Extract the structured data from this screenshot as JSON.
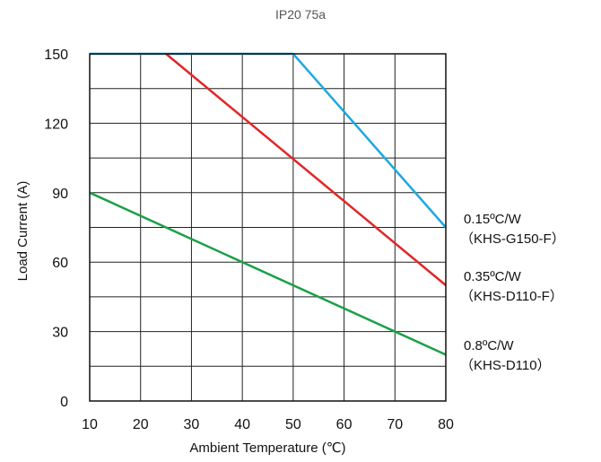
{
  "chart_data": {
    "type": "line",
    "title": "IP20 75a",
    "xlabel": "Ambient Temperature (℃)",
    "ylabel": "Load Current (A)",
    "xlim": [
      10,
      80
    ],
    "ylim": [
      0,
      150
    ],
    "xticks": [
      10,
      20,
      30,
      40,
      50,
      60,
      70,
      80
    ],
    "yticks": [
      0,
      30,
      60,
      90,
      120,
      150
    ],
    "grid": true,
    "series": [
      {
        "name": "0.15ºC/W",
        "sublabel": "（KHS-G150-F）",
        "color": "#1fa8e0",
        "x": [
          10,
          50,
          80
        ],
        "y": [
          150,
          150,
          75
        ]
      },
      {
        "name": "0.35ºC/W",
        "sublabel": "（KHS-D110-F）",
        "color": "#e02727",
        "x": [
          25,
          80
        ],
        "y": [
          150,
          50
        ]
      },
      {
        "name": "0.8ºC/W",
        "sublabel": "（KHS-D110）",
        "color": "#1aa047",
        "x": [
          10,
          80
        ],
        "y": [
          90,
          20
        ]
      }
    ]
  }
}
